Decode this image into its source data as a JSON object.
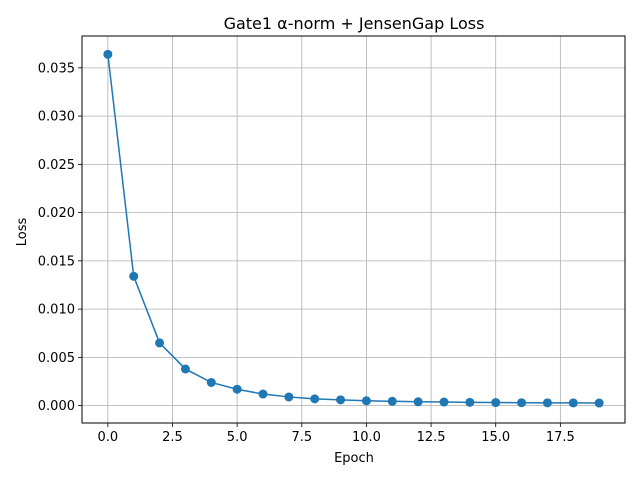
{
  "chart_data": {
    "type": "line",
    "title": "Gate1 α-norm + JensenGap Loss",
    "xlabel": "Epoch",
    "ylabel": "Loss",
    "xlim": [
      -1.0,
      20.0
    ],
    "ylim": [
      -0.0018,
      0.0383
    ],
    "xticks": [
      0,
      2.5,
      5,
      7.5,
      10,
      12.5,
      15,
      17.5
    ],
    "xtick_labels": [
      "0.0",
      "2.5",
      "5.0",
      "7.5",
      "10.0",
      "12.5",
      "15.0",
      "17.5"
    ],
    "yticks": [
      0,
      0.005,
      0.01,
      0.015,
      0.02,
      0.025,
      0.03,
      0.035
    ],
    "ytick_labels": [
      "0.000",
      "0.005",
      "0.010",
      "0.015",
      "0.020",
      "0.025",
      "0.030",
      "0.035"
    ],
    "grid": true,
    "color": "#1f77b4",
    "series": [
      {
        "x": [
          0,
          1,
          2,
          3,
          4,
          5,
          6,
          7,
          8,
          9,
          10,
          11,
          12,
          13,
          14,
          15,
          16,
          17,
          18,
          19
        ],
        "values": [
          0.0364,
          0.0134,
          0.0065,
          0.0038,
          0.0024,
          0.0017,
          0.0012,
          0.0009,
          0.0007,
          0.0006,
          0.0005,
          0.00045,
          0.0004,
          0.00037,
          0.00034,
          0.00032,
          0.0003,
          0.00029,
          0.00028,
          0.00027
        ]
      }
    ]
  }
}
